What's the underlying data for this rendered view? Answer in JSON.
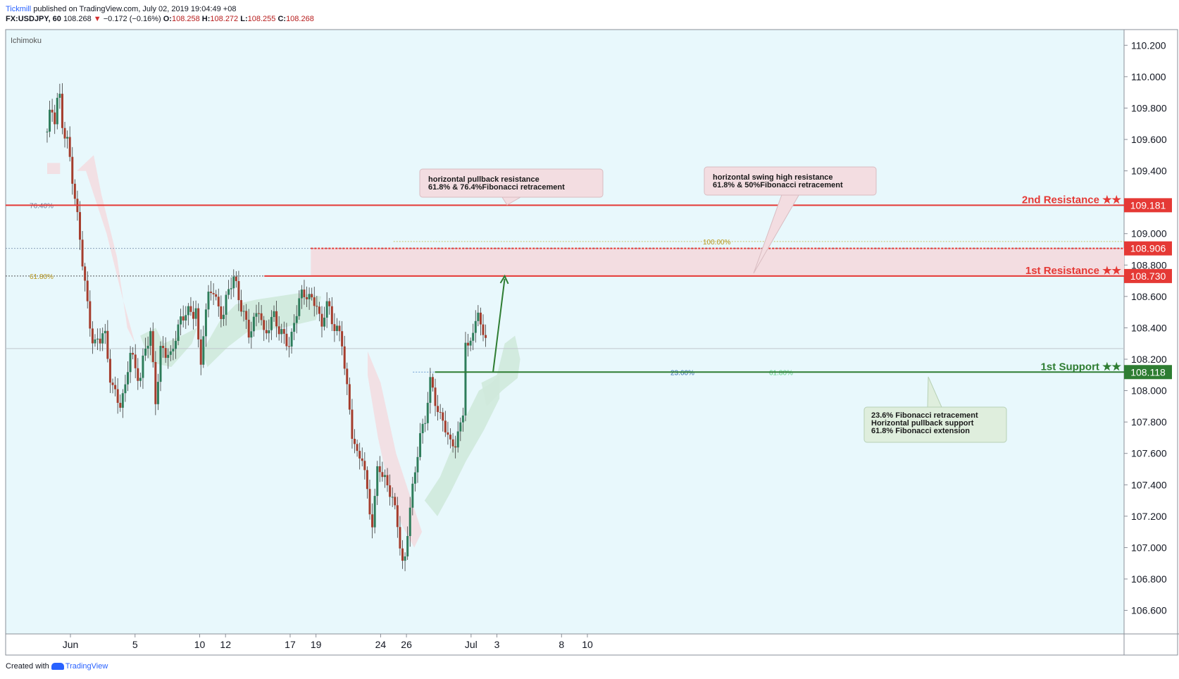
{
  "header": {
    "author": "Tickmill",
    "published": "published on TradingView.com, July 02, 2019 19:04:49 +08",
    "symbol": "FX:USDJPY, 60",
    "last": "108.268",
    "arrow": "▼",
    "change": "−0.172 (−0.16%)",
    "o_label": "O:",
    "o": "108.258",
    "h_label": "H:",
    "h": "108.272",
    "l_label": "L:",
    "l": "108.255",
    "c_label": "C:",
    "c": "108.268"
  },
  "footer": {
    "created_with": "Created with",
    "brand": "TradingView"
  },
  "colors": {
    "plot_bg": "#e8f8fc",
    "resistance": "#e53935",
    "support": "#2e7d32",
    "candle_up": "#2e7d5b",
    "candle_down": "#a53d2d",
    "cloud_bull": "#cfe9dc",
    "cloud_bear": "#f3dde1"
  },
  "chart_data": {
    "type": "candlestick",
    "indicator": "Ichimoku",
    "y_ticks": [
      "110.200",
      "110.000",
      "109.800",
      "109.600",
      "109.400",
      "109.200",
      "109.000",
      "108.800",
      "108.600",
      "108.400",
      "108.200",
      "108.000",
      "107.800",
      "107.600",
      "107.400",
      "107.200",
      "107.000",
      "106.800",
      "106.600"
    ],
    "ylim": [
      106.45,
      110.3
    ],
    "x_ticks": [
      "Jun",
      "5",
      "10",
      "12",
      "17",
      "19",
      "24",
      "26",
      "Jul",
      "3",
      "8",
      "10"
    ],
    "price_path": [
      [
        -1.8,
        109.65
      ],
      [
        -1.5,
        109.78
      ],
      [
        -1.2,
        109.7
      ],
      [
        -0.9,
        109.9
      ],
      [
        -0.6,
        109.68
      ],
      [
        -0.2,
        109.6
      ],
      [
        0.2,
        109.35
      ],
      [
        0.6,
        109.05
      ],
      [
        1.0,
        108.75
      ],
      [
        1.4,
        108.45
      ],
      [
        1.8,
        108.3
      ],
      [
        2.2,
        108.35
      ],
      [
        2.6,
        108.42
      ],
      [
        3.0,
        108.1
      ],
      [
        3.4,
        107.95
      ],
      [
        3.8,
        107.9
      ],
      [
        4.2,
        108.0
      ],
      [
        4.6,
        108.3
      ],
      [
        5.0,
        108.15
      ],
      [
        5.4,
        108.05
      ],
      [
        5.8,
        108.25
      ],
      [
        6.2,
        108.35
      ],
      [
        6.6,
        107.95
      ],
      [
        7.0,
        108.3
      ],
      [
        7.4,
        108.25
      ],
      [
        7.8,
        108.18
      ],
      [
        8.2,
        108.35
      ],
      [
        8.6,
        108.45
      ],
      [
        9.0,
        108.55
      ],
      [
        9.4,
        108.5
      ],
      [
        9.8,
        108.55
      ],
      [
        10.0,
        108.0
      ],
      [
        10.2,
        108.3
      ],
      [
        10.6,
        108.55
      ],
      [
        11.0,
        108.68
      ],
      [
        11.4,
        108.55
      ],
      [
        11.8,
        108.5
      ],
      [
        12.2,
        108.62
      ],
      [
        12.6,
        108.7
      ],
      [
        13.0,
        108.58
      ],
      [
        13.4,
        108.5
      ],
      [
        13.8,
        108.4
      ],
      [
        14.2,
        108.45
      ],
      [
        14.6,
        108.52
      ],
      [
        15.0,
        108.3
      ],
      [
        15.4,
        108.42
      ],
      [
        15.8,
        108.5
      ],
      [
        16.2,
        108.4
      ],
      [
        16.6,
        108.35
      ],
      [
        17.0,
        108.25
      ],
      [
        17.4,
        108.45
      ],
      [
        17.8,
        108.6
      ],
      [
        18.2,
        108.65
      ],
      [
        18.6,
        108.6
      ],
      [
        19.0,
        108.58
      ],
      [
        19.4,
        108.35
      ],
      [
        19.8,
        108.55
      ],
      [
        20.2,
        108.45
      ],
      [
        20.6,
        108.42
      ],
      [
        21.0,
        108.35
      ],
      [
        21.4,
        108.0
      ],
      [
        21.8,
        107.7
      ],
      [
        22.2,
        107.55
      ],
      [
        22.6,
        107.6
      ],
      [
        23.0,
        107.35
      ],
      [
        23.4,
        107.15
      ],
      [
        23.8,
        107.55
      ],
      [
        24.2,
        107.4
      ],
      [
        24.6,
        107.38
      ],
      [
        25.0,
        107.3
      ],
      [
        25.4,
        107.15
      ],
      [
        25.6,
        106.95
      ],
      [
        25.8,
        106.85
      ],
      [
        26.2,
        107.2
      ],
      [
        26.6,
        107.4
      ],
      [
        27.0,
        107.7
      ],
      [
        27.4,
        107.8
      ],
      [
        27.8,
        108.1
      ],
      [
        28.2,
        107.95
      ],
      [
        28.6,
        107.8
      ],
      [
        29.0,
        107.75
      ],
      [
        29.4,
        107.65
      ],
      [
        29.8,
        107.7
      ],
      [
        30.2,
        107.8
      ],
      [
        30.4,
        107.9
      ],
      [
        30.6,
        108.4
      ],
      [
        30.8,
        108.2
      ],
      [
        31.2,
        108.4
      ],
      [
        31.6,
        108.45
      ],
      [
        32.0,
        108.4
      ],
      [
        32.3,
        108.27
      ]
    ],
    "levels": [
      {
        "label": "2nd Resistance ★★",
        "value": 109.181,
        "tag": "109.181",
        "type": "resistance"
      },
      {
        "label": "1st Resistance ★★",
        "value": 108.73,
        "tag": "108.730",
        "type": "resistance"
      },
      {
        "label": "1st Support ★★",
        "value": 108.118,
        "tag": "108.118",
        "type": "support"
      },
      {
        "label": "",
        "value": 108.906,
        "tag": "108.906",
        "type": "fib-100"
      }
    ],
    "fib_labels": [
      "76.40%",
      "61.80%",
      "100.00%",
      "23.60%",
      "61.80%"
    ],
    "annotations": [
      {
        "lines": [
          "horizontal pullback resistance",
          "61.8% & 76.4%Fibonacci retracement"
        ],
        "type": "resistance"
      },
      {
        "lines": [
          "horizontal swing high resistance",
          "61.8% & 50%Fibonacci retracement"
        ],
        "type": "resistance"
      },
      {
        "lines": [
          "23.6% Fibonacci retracement",
          "Horizontal pullback support",
          "61.8% Fibonacci extension"
        ],
        "type": "support"
      }
    ],
    "last_price": 108.268
  }
}
